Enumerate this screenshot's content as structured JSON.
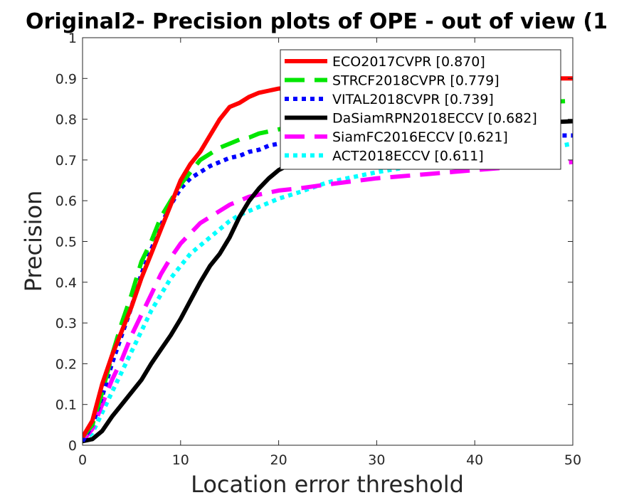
{
  "chart_data": {
    "type": "line",
    "title": "Original2- Precision plots of OPE - out of view (1",
    "xlabel": "Location error threshold",
    "ylabel": "Precision",
    "xlim": [
      0,
      50
    ],
    "ylim": [
      0,
      1
    ],
    "xticks": [
      "0",
      "10",
      "20",
      "30",
      "40",
      "50"
    ],
    "yticks": [
      "0",
      "0.1",
      "0.2",
      "0.3",
      "0.4",
      "0.5",
      "0.6",
      "0.7",
      "0.8",
      "0.9",
      "1"
    ],
    "grid": false,
    "legend_position": "top-right",
    "series": [
      {
        "name": "ECO2017CVPR [0.870]",
        "color": "#ff0000",
        "dash": "solid",
        "x": [
          0,
          1,
          2,
          3,
          4,
          5,
          6,
          7,
          8,
          9,
          10,
          11,
          12,
          13,
          14,
          15,
          16,
          17,
          18,
          19,
          20,
          22,
          25,
          30,
          35,
          40,
          45,
          50
        ],
        "y": [
          0.02,
          0.06,
          0.15,
          0.22,
          0.28,
          0.34,
          0.41,
          0.47,
          0.53,
          0.59,
          0.65,
          0.69,
          0.72,
          0.76,
          0.8,
          0.83,
          0.84,
          0.855,
          0.865,
          0.87,
          0.875,
          0.88,
          0.885,
          0.89,
          0.895,
          0.9,
          0.9,
          0.9
        ]
      },
      {
        "name": "STRCF2018CVPR [0.779]",
        "color": "#00e600",
        "dash": "long",
        "x": [
          0,
          1,
          2,
          3,
          4,
          5,
          6,
          7,
          8,
          9,
          10,
          11,
          12,
          13,
          14,
          15,
          16,
          17,
          18,
          19,
          20,
          22,
          25,
          30,
          35,
          40,
          45,
          50
        ],
        "y": [
          0.02,
          0.05,
          0.13,
          0.22,
          0.3,
          0.37,
          0.45,
          0.5,
          0.56,
          0.6,
          0.64,
          0.67,
          0.7,
          0.715,
          0.73,
          0.74,
          0.75,
          0.755,
          0.765,
          0.77,
          0.775,
          0.785,
          0.795,
          0.81,
          0.82,
          0.83,
          0.84,
          0.845
        ]
      },
      {
        "name": "VITAL2018CVPR [0.739]",
        "color": "#0000ff",
        "dash": "dotted",
        "x": [
          0,
          1,
          2,
          3,
          4,
          5,
          6,
          7,
          8,
          9,
          10,
          11,
          12,
          13,
          14,
          15,
          16,
          17,
          18,
          19,
          20,
          22,
          25,
          30,
          35,
          40,
          45,
          50
        ],
        "y": [
          0.01,
          0.05,
          0.12,
          0.2,
          0.27,
          0.34,
          0.42,
          0.48,
          0.54,
          0.59,
          0.63,
          0.655,
          0.67,
          0.685,
          0.695,
          0.705,
          0.71,
          0.72,
          0.725,
          0.735,
          0.74,
          0.748,
          0.752,
          0.755,
          0.757,
          0.76,
          0.76,
          0.76
        ]
      },
      {
        "name": "DaSiamRPN2018ECCV [0.682]",
        "color": "#000000",
        "dash": "solid",
        "x": [
          0,
          1,
          2,
          3,
          4,
          5,
          6,
          7,
          8,
          9,
          10,
          11,
          12,
          13,
          14,
          15,
          16,
          17,
          18,
          19,
          20,
          22,
          25,
          30,
          35,
          40,
          45,
          50
        ],
        "y": [
          0.01,
          0.015,
          0.035,
          0.07,
          0.1,
          0.13,
          0.16,
          0.2,
          0.235,
          0.27,
          0.31,
          0.355,
          0.4,
          0.44,
          0.47,
          0.51,
          0.56,
          0.6,
          0.63,
          0.655,
          0.675,
          0.7,
          0.73,
          0.76,
          0.775,
          0.785,
          0.79,
          0.795
        ]
      },
      {
        "name": "SiamFC2016ECCV [0.621]",
        "color": "#ff00ff",
        "dash": "long",
        "x": [
          0,
          1,
          2,
          3,
          4,
          5,
          6,
          7,
          8,
          9,
          10,
          11,
          12,
          13,
          14,
          15,
          16,
          17,
          18,
          19,
          20,
          22,
          25,
          30,
          35,
          40,
          45,
          50
        ],
        "y": [
          0.01,
          0.04,
          0.1,
          0.16,
          0.21,
          0.27,
          0.32,
          0.37,
          0.42,
          0.46,
          0.495,
          0.52,
          0.545,
          0.56,
          0.575,
          0.59,
          0.6,
          0.61,
          0.615,
          0.62,
          0.625,
          0.63,
          0.64,
          0.655,
          0.665,
          0.675,
          0.685,
          0.695
        ]
      },
      {
        "name": "ACT2018ECCV [0.611]",
        "color": "#00ffff",
        "dash": "dotted",
        "x": [
          0,
          1,
          2,
          3,
          4,
          5,
          6,
          7,
          8,
          9,
          10,
          11,
          12,
          13,
          14,
          15,
          16,
          17,
          18,
          19,
          20,
          22,
          25,
          30,
          35,
          40,
          45,
          50
        ],
        "y": [
          0.01,
          0.03,
          0.08,
          0.13,
          0.18,
          0.23,
          0.28,
          0.33,
          0.37,
          0.41,
          0.44,
          0.47,
          0.49,
          0.51,
          0.53,
          0.55,
          0.565,
          0.575,
          0.585,
          0.595,
          0.605,
          0.62,
          0.645,
          0.67,
          0.69,
          0.705,
          0.72,
          0.74
        ]
      }
    ]
  }
}
